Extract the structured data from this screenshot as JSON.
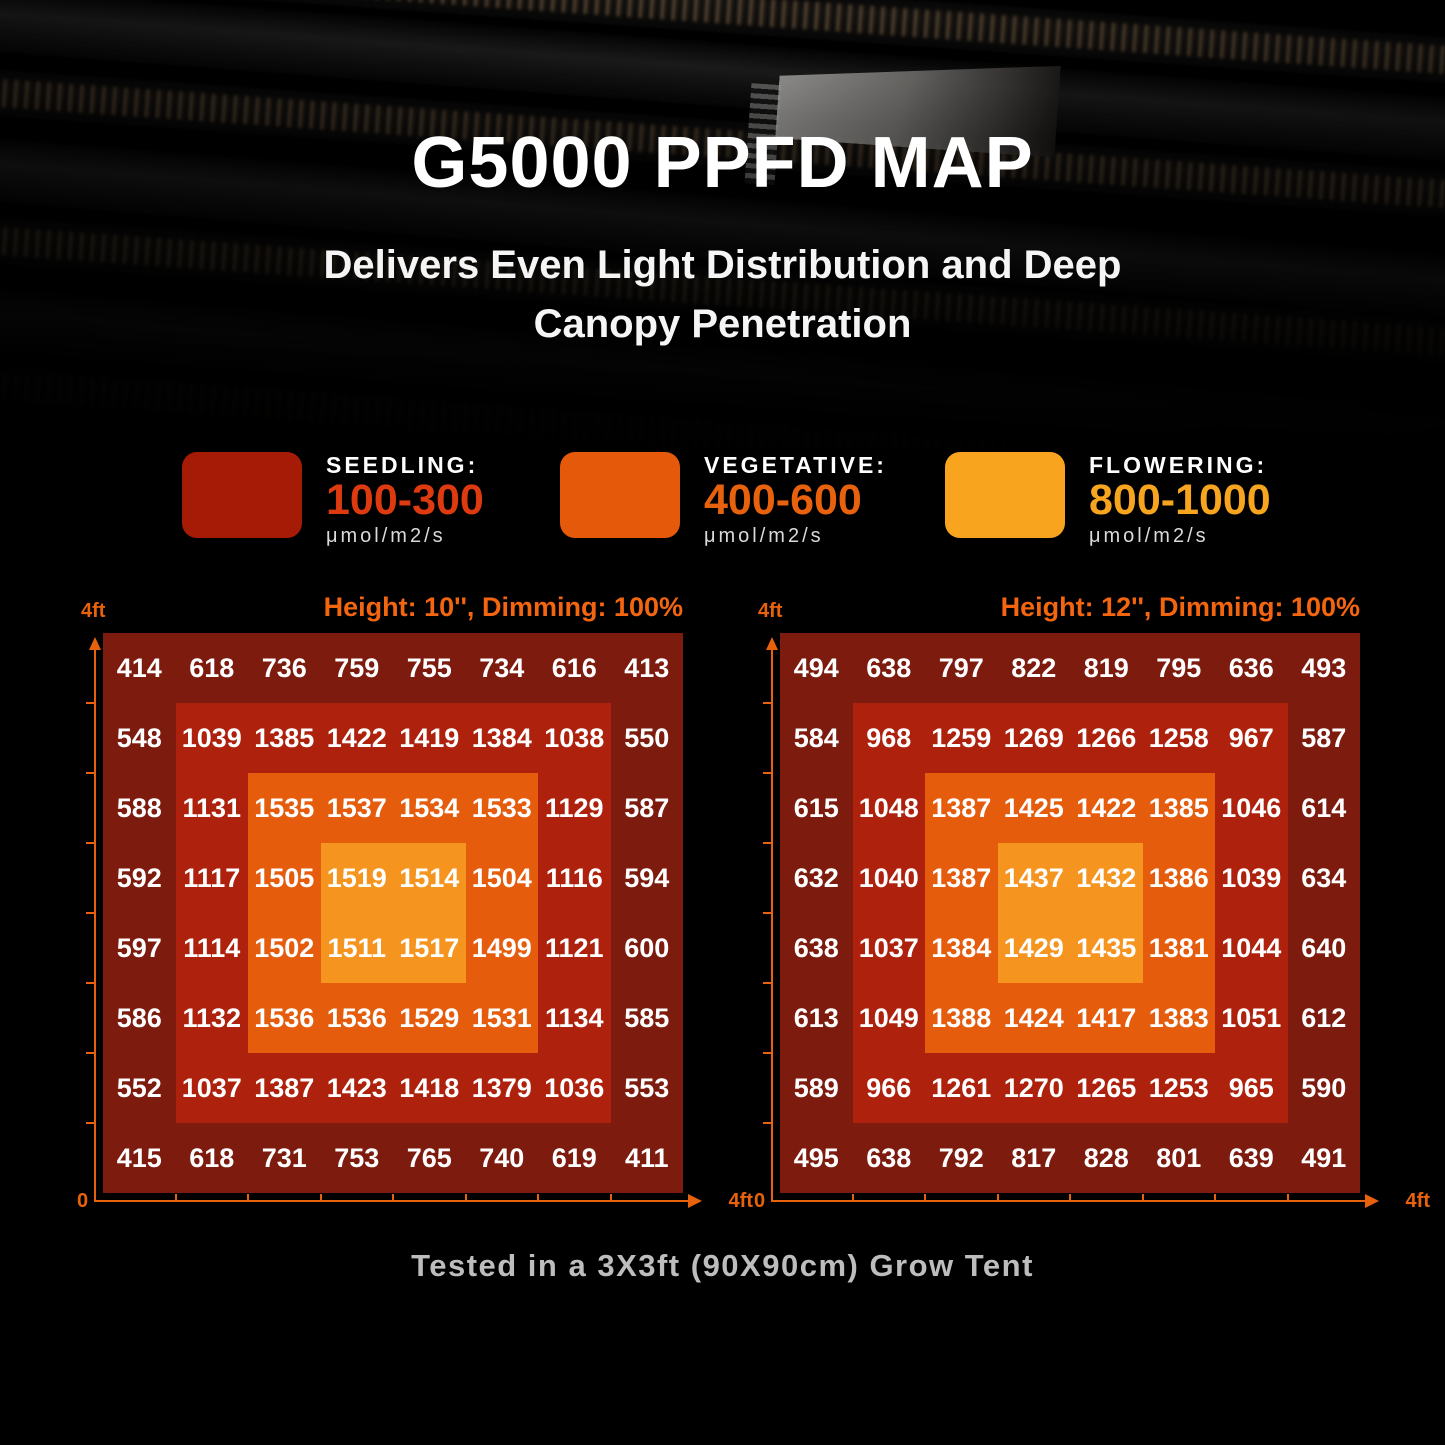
{
  "page": {
    "title": "G5000 PPFD MAP",
    "subtitle": "Delivers Even Light Distribution and Deep Canopy Penetration",
    "footer": "Tested in a 3X3ft (90X90cm) Grow Tent"
  },
  "legend": {
    "items": [
      {
        "name": "seedling",
        "label": "SEEDLING:",
        "range": "100-300",
        "unit": "μmol/m2/s",
        "swatch_color": "#A51B06",
        "range_color": "#DE3A10"
      },
      {
        "name": "vegetative",
        "label": "VEGETATIVE:",
        "range": "400-600",
        "unit": "μmol/m2/s",
        "swatch_color": "#E5590B",
        "range_color": "#E8620D"
      },
      {
        "name": "flowering",
        "label": "FLOWERING:",
        "range": "800-1000",
        "unit": "μmol/m2/s",
        "swatch_color": "#F8A41F",
        "range_color": "#F7A41F"
      }
    ]
  },
  "axis": {
    "color": "#E8620D",
    "y_max_label": "4ft",
    "x_origin_label": "0",
    "x_max_label": "4ft"
  },
  "heatmap_style": {
    "ring_colors": [
      "#7C1B0E",
      "#AE210C",
      "#E55C0D",
      "#F5941E"
    ],
    "value_text_color": "#ffffff"
  },
  "chart_data": [
    {
      "type": "heatmap",
      "title": "Height: 10'', Dimming: 100%",
      "unit": "μmol/m2/s",
      "x_range_ft": [
        0,
        4
      ],
      "y_range_ft": [
        0,
        4
      ],
      "values": [
        [
          414,
          618,
          736,
          759,
          755,
          734,
          616,
          413
        ],
        [
          548,
          1039,
          1385,
          1422,
          1419,
          1384,
          1038,
          550
        ],
        [
          588,
          1131,
          1535,
          1537,
          1534,
          1533,
          1129,
          587
        ],
        [
          592,
          1117,
          1505,
          1519,
          1514,
          1504,
          1116,
          594
        ],
        [
          597,
          1114,
          1502,
          1511,
          1517,
          1499,
          1121,
          600
        ],
        [
          586,
          1132,
          1536,
          1536,
          1529,
          1531,
          1134,
          585
        ],
        [
          552,
          1037,
          1387,
          1423,
          1418,
          1379,
          1036,
          553
        ],
        [
          415,
          618,
          731,
          753,
          765,
          740,
          619,
          411
        ]
      ]
    },
    {
      "type": "heatmap",
      "title": "Height: 12'', Dimming: 100%",
      "unit": "μmol/m2/s",
      "x_range_ft": [
        0,
        4
      ],
      "y_range_ft": [
        0,
        4
      ],
      "values": [
        [
          494,
          638,
          797,
          822,
          819,
          795,
          636,
          493
        ],
        [
          584,
          968,
          1259,
          1269,
          1266,
          1258,
          967,
          587
        ],
        [
          615,
          1048,
          1387,
          1425,
          1422,
          1385,
          1046,
          614
        ],
        [
          632,
          1040,
          1387,
          1437,
          1432,
          1386,
          1039,
          634
        ],
        [
          638,
          1037,
          1384,
          1429,
          1435,
          1381,
          1044,
          640
        ],
        [
          613,
          1049,
          1388,
          1424,
          1417,
          1383,
          1051,
          612
        ],
        [
          589,
          966,
          1261,
          1270,
          1265,
          1253,
          965,
          590
        ],
        [
          495,
          638,
          792,
          817,
          828,
          801,
          639,
          491
        ]
      ]
    }
  ]
}
